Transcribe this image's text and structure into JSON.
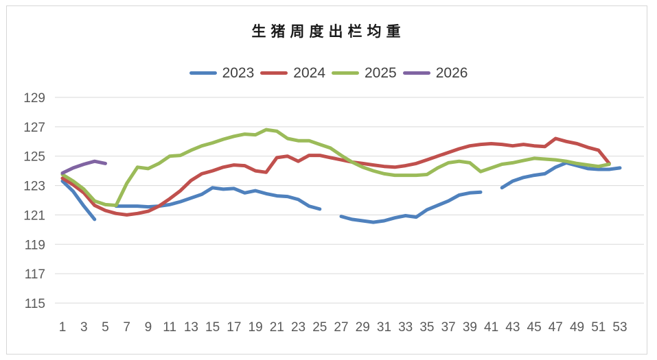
{
  "page": {
    "background_color": "#ffffff",
    "frame_border_color": "#d6d6d6"
  },
  "chart_data": {
    "type": "line",
    "title": "生猪周度出栏均重",
    "xlabel": "",
    "ylabel": "",
    "xlim": [
      1,
      53
    ],
    "ylim": [
      115,
      129
    ],
    "grid": "horizontal",
    "legend_position": "top",
    "gridline_color": "#d9d9d9",
    "axis_label_color": "#595959",
    "x_ticks": [
      1,
      3,
      5,
      7,
      9,
      11,
      13,
      15,
      17,
      19,
      21,
      23,
      25,
      27,
      29,
      31,
      33,
      35,
      37,
      39,
      41,
      43,
      45,
      47,
      49,
      51,
      53
    ],
    "y_ticks": [
      129,
      127,
      125,
      123,
      121,
      119,
      117,
      115
    ],
    "x_unit": "week",
    "series": [
      {
        "name": "2023",
        "color": "#4F81BD",
        "values": [
          123.3,
          122.6,
          121.6,
          120.7,
          null,
          121.6,
          121.6,
          121.6,
          121.55,
          121.6,
          121.7,
          121.9,
          122.15,
          122.4,
          122.85,
          122.75,
          122.8,
          122.5,
          122.65,
          122.45,
          122.3,
          122.25,
          122.05,
          121.6,
          121.4,
          null,
          120.9,
          120.7,
          120.6,
          120.5,
          120.6,
          120.8,
          120.95,
          120.85,
          121.35,
          121.65,
          121.95,
          122.35,
          122.5,
          122.55,
          null,
          122.85,
          123.3,
          123.55,
          123.7,
          123.8,
          124.25,
          124.55,
          124.35,
          124.15,
          124.1,
          124.1,
          124.2
        ]
      },
      {
        "name": "2024",
        "color": "#C0504D",
        "values": [
          123.5,
          123.05,
          122.5,
          121.65,
          121.3,
          121.1,
          121.0,
          121.1,
          121.25,
          121.6,
          122.1,
          122.65,
          123.35,
          123.8,
          124.0,
          124.25,
          124.4,
          124.35,
          124.0,
          123.9,
          124.9,
          125.0,
          124.65,
          125.05,
          125.05,
          124.9,
          124.75,
          124.6,
          124.5,
          124.4,
          124.3,
          124.25,
          124.35,
          124.5,
          124.75,
          125.0,
          125.25,
          125.5,
          125.7,
          125.8,
          125.85,
          125.8,
          125.7,
          125.8,
          125.7,
          125.65,
          126.2,
          126.0,
          125.85,
          125.6,
          125.4,
          124.5
        ]
      },
      {
        "name": "2025",
        "color": "#9BBB59",
        "values": [
          123.75,
          123.3,
          122.75,
          121.95,
          121.7,
          121.65,
          123.15,
          124.25,
          124.15,
          124.5,
          125.0,
          125.05,
          125.4,
          125.7,
          125.9,
          126.15,
          126.35,
          126.5,
          126.45,
          126.8,
          126.7,
          126.2,
          126.05,
          126.05,
          125.8,
          125.55,
          125.05,
          124.6,
          124.25,
          124.0,
          123.8,
          123.7,
          123.7,
          123.7,
          123.75,
          124.2,
          124.55,
          124.65,
          124.55,
          123.95,
          124.2,
          124.45,
          124.55,
          124.7,
          124.85,
          124.8,
          124.75,
          124.65,
          124.5,
          124.4,
          124.3,
          124.45
        ]
      },
      {
        "name": "2026",
        "color": "#8064A2",
        "values": [
          123.85,
          124.2,
          124.45,
          124.65,
          124.5
        ]
      }
    ]
  }
}
